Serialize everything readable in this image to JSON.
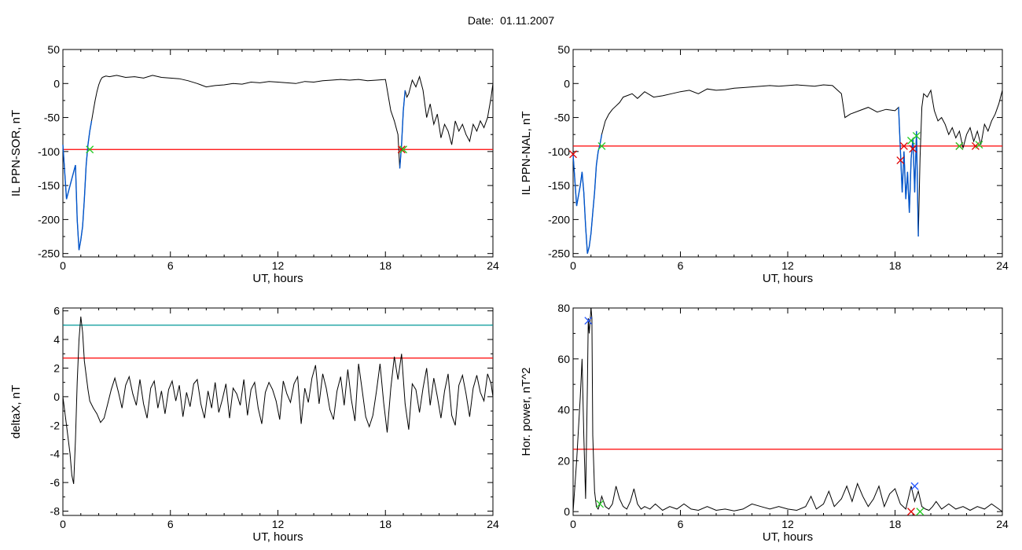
{
  "figure": {
    "title": "Date:  01.11.2007"
  },
  "colors": {
    "trace": "#000000",
    "threshold": "#ff0000",
    "upper_threshold": "#009999",
    "highlight": "#0055cc",
    "marker_red": "#e00000",
    "marker_green": "#22cc22",
    "marker_blue": "#2255ff"
  },
  "chart_data": [
    {
      "id": "ppn-sor",
      "type": "line",
      "xlabel": "UT, hours",
      "ylabel": "IL PPN-SOR, nT",
      "xlim": [
        0,
        24
      ],
      "ylim": [
        -255,
        50
      ],
      "xticks": [
        0,
        6,
        12,
        18,
        24
      ],
      "yticks": [
        50,
        0,
        -50,
        -100,
        -150,
        -200,
        -250
      ],
      "threshold": -97,
      "series": [
        {
          "x": [
            0,
            0.2,
            0.4,
            0.6,
            0.7,
            0.8,
            0.9,
            1.0,
            1.1,
            1.2,
            1.3,
            1.4,
            1.5,
            1.6,
            1.7,
            1.8,
            1.9,
            2.0,
            2.1,
            2.2,
            2.3,
            2.4,
            2.6,
            2.8,
            3.0,
            3.5,
            4.0,
            4.5,
            5.0,
            5.5,
            6.0,
            6.5,
            7.0,
            7.5,
            8.0,
            8.5,
            9.0,
            9.5,
            10.0,
            10.5,
            11.0,
            11.5,
            12.0,
            12.5,
            13.0,
            13.5,
            14.0,
            14.5,
            15.0,
            15.5,
            16.0,
            16.5,
            17.0,
            17.5,
            18.0,
            18.3,
            18.5,
            18.7,
            18.8,
            18.9,
            19.0,
            19.1,
            19.2,
            19.3,
            19.5,
            19.7,
            19.9,
            20.1,
            20.3,
            20.5,
            20.7,
            20.9,
            21.1,
            21.3,
            21.5,
            21.7,
            21.9,
            22.1,
            22.3,
            22.5,
            22.7,
            22.9,
            23.1,
            23.3,
            23.5,
            23.7,
            23.9,
            24.0
          ],
          "y": [
            -90,
            -170,
            -150,
            -130,
            -120,
            -200,
            -245,
            -230,
            -210,
            -170,
            -120,
            -90,
            -70,
            -55,
            -40,
            -25,
            -12,
            -2,
            5,
            9,
            10,
            11,
            10,
            11,
            12,
            9,
            10,
            8,
            12,
            9,
            8,
            7,
            4,
            0,
            -5,
            -3,
            -2,
            0,
            -1,
            2,
            1,
            3,
            2,
            1,
            0,
            3,
            2,
            4,
            5,
            6,
            5,
            6,
            4,
            5,
            6,
            -40,
            -55,
            -75,
            -125,
            -90,
            -40,
            -10,
            -20,
            -15,
            5,
            -5,
            10,
            -10,
            -50,
            -30,
            -60,
            -45,
            -80,
            -60,
            -70,
            -90,
            -55,
            -70,
            -60,
            -75,
            -85,
            -60,
            -70,
            -55,
            -65,
            -50,
            -20,
            0
          ],
          "highlight_ranges": [
            [
              0,
              1.6
            ],
            [
              18.8,
              19.1
            ]
          ]
        }
      ],
      "markers": [
        {
          "x": 1.5,
          "y": -97,
          "color": "green"
        },
        {
          "x": 18.9,
          "y": -97,
          "color": "red"
        },
        {
          "x": 19.0,
          "y": -97,
          "color": "green"
        }
      ]
    },
    {
      "id": "ppn-nal",
      "type": "line",
      "xlabel": "UT, hours",
      "ylabel": "IL PPN-NAL, nT",
      "xlim": [
        0,
        24
      ],
      "ylim": [
        -255,
        50
      ],
      "xticks": [
        0,
        6,
        12,
        18,
        24
      ],
      "yticks": [
        50,
        0,
        -50,
        -100,
        -150,
        -200,
        -250
      ],
      "threshold": -92,
      "series": [
        {
          "x": [
            0,
            0.2,
            0.4,
            0.5,
            0.6,
            0.7,
            0.8,
            0.9,
            1.0,
            1.1,
            1.2,
            1.3,
            1.4,
            1.5,
            1.6,
            1.7,
            1.8,
            1.9,
            2.0,
            2.2,
            2.4,
            2.6,
            2.8,
            3.0,
            3.3,
            3.6,
            4.0,
            4.5,
            5.0,
            5.5,
            6.0,
            6.5,
            7.0,
            7.5,
            8.0,
            8.5,
            9.0,
            9.5,
            10.0,
            10.5,
            11.0,
            11.5,
            12.0,
            12.5,
            13.0,
            13.5,
            14.0,
            14.5,
            15.0,
            15.2,
            15.5,
            16.0,
            16.5,
            17.0,
            17.5,
            18.0,
            18.2,
            18.4,
            18.5,
            18.6,
            18.7,
            18.8,
            18.9,
            19.0,
            19.1,
            19.2,
            19.3,
            19.4,
            19.5,
            19.6,
            19.8,
            20.0,
            20.2,
            20.4,
            20.6,
            20.8,
            21.0,
            21.2,
            21.4,
            21.6,
            21.8,
            22.0,
            22.2,
            22.4,
            22.6,
            22.8,
            23.0,
            23.2,
            23.4,
            23.6,
            23.8,
            24.0
          ],
          "y": [
            -105,
            -180,
            -150,
            -130,
            -160,
            -210,
            -250,
            -240,
            -220,
            -190,
            -160,
            -120,
            -100,
            -90,
            -75,
            -65,
            -55,
            -50,
            -45,
            -38,
            -33,
            -28,
            -20,
            -18,
            -15,
            -22,
            -12,
            -20,
            -18,
            -15,
            -12,
            -10,
            -15,
            -8,
            -10,
            -9,
            -7,
            -6,
            -5,
            -4,
            -3,
            -4,
            -3,
            -2,
            -3,
            -4,
            -2,
            -3,
            -15,
            -50,
            -45,
            -40,
            -35,
            -42,
            -38,
            -40,
            -35,
            -160,
            -100,
            -170,
            -130,
            -190,
            -110,
            -80,
            -160,
            -70,
            -225,
            -110,
            -35,
            -15,
            -20,
            -10,
            -40,
            -55,
            -50,
            -60,
            -75,
            -65,
            -80,
            -70,
            -95,
            -75,
            -65,
            -85,
            -70,
            -90,
            -60,
            -70,
            -55,
            -45,
            -30,
            -10
          ],
          "highlight_ranges": [
            [
              0,
              1.6
            ],
            [
              18.2,
              19.3
            ]
          ]
        }
      ],
      "markers": [
        {
          "x": 0.0,
          "y": -104,
          "color": "red"
        },
        {
          "x": 1.6,
          "y": -92,
          "color": "green"
        },
        {
          "x": 18.3,
          "y": -113,
          "color": "red"
        },
        {
          "x": 18.5,
          "y": -92,
          "color": "red"
        },
        {
          "x": 18.9,
          "y": -84,
          "color": "green"
        },
        {
          "x": 19.0,
          "y": -96,
          "color": "red"
        },
        {
          "x": 19.2,
          "y": -77,
          "color": "green"
        },
        {
          "x": 21.6,
          "y": -92,
          "color": "red"
        },
        {
          "x": 21.6,
          "y": -92,
          "color": "green"
        },
        {
          "x": 22.5,
          "y": -92,
          "color": "red"
        },
        {
          "x": 22.7,
          "y": -90,
          "color": "green"
        }
      ]
    },
    {
      "id": "deltax",
      "type": "line",
      "xlabel": "UT, hours",
      "ylabel": "deltaX, nT",
      "xlim": [
        0,
        24
      ],
      "ylim": [
        -8.3,
        6.2
      ],
      "xticks": [
        0,
        6,
        12,
        18,
        24
      ],
      "yticks": [
        6,
        4,
        2,
        0,
        -2,
        -4,
        -6,
        -8
      ],
      "threshold": 2.7,
      "upper_threshold": 5.0,
      "series": [
        {
          "x": [
            0,
            0.2,
            0.4,
            0.5,
            0.6,
            0.7,
            0.8,
            0.9,
            1.0,
            1.1,
            1.2,
            1.3,
            1.4,
            1.5,
            1.7,
            1.9,
            2.1,
            2.3,
            2.5,
            2.7,
            2.9,
            3.1,
            3.3,
            3.5,
            3.7,
            3.9,
            4.1,
            4.3,
            4.5,
            4.7,
            4.9,
            5.1,
            5.3,
            5.5,
            5.7,
            5.9,
            6.1,
            6.3,
            6.5,
            6.7,
            6.9,
            7.1,
            7.3,
            7.5,
            7.7,
            7.9,
            8.1,
            8.3,
            8.5,
            8.7,
            8.9,
            9.1,
            9.3,
            9.5,
            9.7,
            9.9,
            10.1,
            10.3,
            10.5,
            10.7,
            10.9,
            11.1,
            11.3,
            11.5,
            11.7,
            11.9,
            12.1,
            12.3,
            12.5,
            12.7,
            12.9,
            13.1,
            13.3,
            13.5,
            13.7,
            13.9,
            14.1,
            14.3,
            14.5,
            14.7,
            14.9,
            15.1,
            15.3,
            15.5,
            15.7,
            15.9,
            16.1,
            16.3,
            16.5,
            16.7,
            16.9,
            17.1,
            17.3,
            17.5,
            17.7,
            17.9,
            18.1,
            18.3,
            18.5,
            18.7,
            18.9,
            19.1,
            19.3,
            19.5,
            19.7,
            19.9,
            20.1,
            20.3,
            20.5,
            20.7,
            20.9,
            21.1,
            21.3,
            21.5,
            21.7,
            21.9,
            22.1,
            22.3,
            22.5,
            22.7,
            22.9,
            23.1,
            23.3,
            23.5,
            23.7,
            23.9,
            24.0
          ],
          "y": [
            0,
            -2,
            -4,
            -5.5,
            -6.1,
            -3,
            1,
            4,
            5.6,
            4.5,
            2.5,
            1.5,
            0.5,
            -0.3,
            -0.8,
            -1.2,
            -1.8,
            -1.5,
            -0.5,
            0.5,
            1.3,
            0.3,
            -0.8,
            0.8,
            1.4,
            0.2,
            -0.6,
            1.2,
            -0.5,
            -1.5,
            0.6,
            1.1,
            -0.8,
            0.4,
            -1.2,
            0.5,
            1.1,
            -0.3,
            0.8,
            -1.4,
            0.3,
            -0.7,
            0.9,
            1.2,
            -0.5,
            -1.5,
            0.4,
            -0.8,
            1.0,
            -1.1,
            -0.2,
            0.9,
            -1.5,
            0.6,
            0.2,
            -0.6,
            1.2,
            -1.3,
            0.5,
            1.0,
            -0.8,
            -1.9,
            0.3,
            1.0,
            0.5,
            -0.3,
            -1.6,
            1.1,
            0.2,
            -0.4,
            0.9,
            1.4,
            -1.9,
            0.6,
            -0.4,
            1.3,
            2.2,
            -0.5,
            1.6,
            0.6,
            -0.9,
            -1.6,
            0.4,
            1.4,
            -0.6,
            1.9,
            -0.2,
            -1.7,
            2.3,
            0.5,
            -1.4,
            -2.1,
            -1.3,
            0.4,
            2.3,
            -0.4,
            -2.5,
            0.6,
            2.8,
            1.2,
            3.0,
            -0.5,
            -2.3,
            0.9,
            0.5,
            -1.1,
            0.6,
            2.0,
            -0.6,
            1.3,
            0.0,
            -1.5,
            0.4,
            1.6,
            -1.3,
            -2.0,
            0.8,
            1.5,
            0.2,
            -1.4,
            0.6,
            1.5,
            0.3,
            -0.3,
            1.6,
            0.9,
            0.0
          ]
        }
      ],
      "markers": []
    },
    {
      "id": "hor-power",
      "type": "line",
      "xlabel": "UT, hours",
      "ylabel": "Hor. power, nT^2",
      "xlim": [
        0,
        24
      ],
      "ylim": [
        -1.5,
        80
      ],
      "xticks": [
        0,
        6,
        12,
        18,
        24
      ],
      "yticks": [
        80,
        60,
        40,
        20,
        0
      ],
      "threshold": 24.5,
      "series": [
        {
          "x": [
            0,
            0.2,
            0.4,
            0.5,
            0.6,
            0.7,
            0.8,
            0.85,
            0.9,
            1.0,
            1.05,
            1.1,
            1.2,
            1.3,
            1.4,
            1.5,
            1.6,
            1.7,
            1.8,
            2.0,
            2.2,
            2.4,
            2.6,
            2.8,
            3.0,
            3.2,
            3.4,
            3.6,
            3.8,
            4.0,
            4.3,
            4.6,
            5.0,
            5.4,
            5.8,
            6.2,
            6.6,
            7.0,
            7.5,
            8.0,
            8.5,
            9.0,
            9.5,
            10.0,
            10.5,
            11.0,
            11.5,
            12.0,
            12.5,
            13.0,
            13.3,
            13.6,
            14.0,
            14.3,
            14.6,
            15.0,
            15.3,
            15.6,
            15.9,
            16.2,
            16.5,
            16.8,
            17.1,
            17.4,
            17.7,
            18.0,
            18.3,
            18.6,
            18.9,
            19.1,
            19.3,
            19.5,
            19.7,
            19.9,
            20.1,
            20.3,
            20.6,
            21.0,
            21.4,
            21.8,
            22.2,
            22.6,
            23.0,
            23.4,
            23.8,
            24.0
          ],
          "y": [
            0,
            20,
            45,
            60,
            30,
            5,
            50,
            76,
            70,
            80,
            76,
            30,
            8,
            2,
            1,
            3,
            6,
            4,
            2,
            1,
            3,
            10,
            5,
            2,
            1,
            4,
            9,
            3,
            1,
            2,
            1,
            3,
            0.5,
            2,
            1,
            3,
            1,
            0.5,
            2,
            0.5,
            1,
            0.3,
            1,
            3,
            2,
            1,
            2,
            1,
            0.5,
            2,
            6,
            1,
            3,
            8,
            2,
            5,
            10,
            4,
            11,
            6,
            2,
            5,
            10,
            2,
            7,
            9,
            3,
            1,
            10,
            4,
            8,
            2,
            1,
            0.5,
            2,
            4,
            1,
            3,
            1,
            2,
            0.5,
            2,
            1,
            3,
            1,
            0
          ]
        }
      ],
      "markers": [
        {
          "x": 0.85,
          "y": 75,
          "color": "blue"
        },
        {
          "x": 1.5,
          "y": 3,
          "color": "green"
        },
        {
          "x": 18.9,
          "y": 0,
          "color": "red"
        },
        {
          "x": 19.1,
          "y": 10,
          "color": "blue"
        },
        {
          "x": 19.4,
          "y": 0,
          "color": "green"
        }
      ]
    }
  ]
}
